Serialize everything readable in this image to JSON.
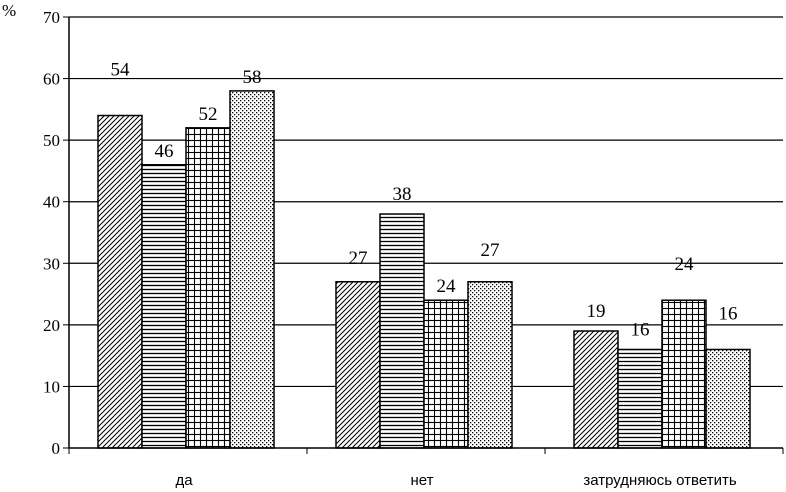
{
  "chart_data": {
    "type": "bar",
    "ylabel": "%",
    "ylim": [
      0,
      70
    ],
    "yticks": [
      0,
      10,
      20,
      30,
      40,
      50,
      60,
      70
    ],
    "grid": true,
    "categories": [
      "да",
      "нет",
      "затрудняюсь ответить"
    ],
    "series": [
      {
        "values": [
          54,
          27,
          19
        ],
        "pattern": "diagonal-hatch"
      },
      {
        "values": [
          46,
          38,
          16
        ],
        "pattern": "horizontal-lines"
      },
      {
        "values": [
          52,
          24,
          24
        ],
        "pattern": "grid"
      },
      {
        "values": [
          58,
          27,
          16
        ],
        "pattern": "dots"
      }
    ]
  }
}
